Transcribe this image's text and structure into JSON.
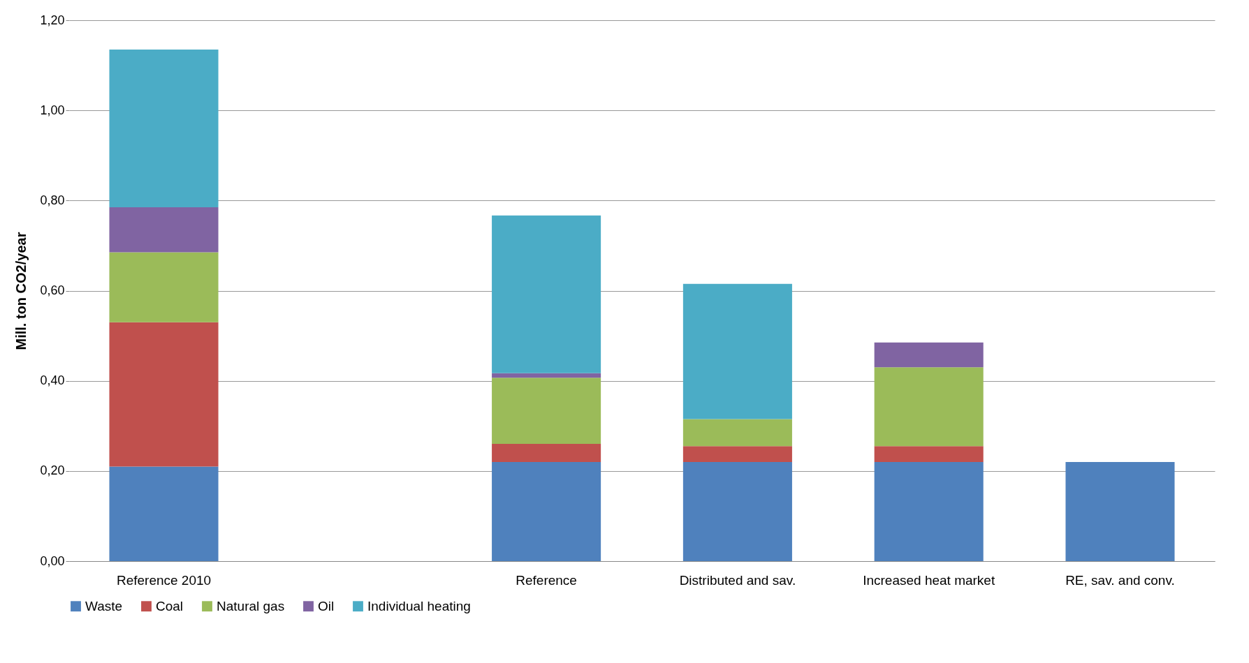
{
  "chart_data": {
    "type": "bar",
    "stacked": true,
    "ylabel": "Mill. ton CO2/year",
    "categories": [
      "Reference 2010",
      null,
      "Reference",
      "Distributed and sav.",
      "Increased heat market",
      "RE, sav. and conv."
    ],
    "series": [
      {
        "name": "Waste",
        "color": "#4f81bd",
        "values": [
          0.21,
          null,
          0.22,
          0.22,
          0.22,
          0.22
        ]
      },
      {
        "name": "Coal",
        "color": "#c0504d",
        "values": [
          0.32,
          null,
          0.04,
          0.035,
          0.035,
          null
        ]
      },
      {
        "name": "Natural gas",
        "color": "#9bbb59",
        "values": [
          0.155,
          null,
          0.147,
          0.06,
          0.175,
          null
        ]
      },
      {
        "name": "Oil",
        "color": "#8064a2",
        "values": [
          0.1,
          null,
          0.01,
          null,
          0.055,
          null
        ]
      },
      {
        "name": "Individual heating",
        "color": "#4bacc6",
        "values": [
          0.35,
          null,
          0.35,
          0.3,
          null,
          null
        ]
      }
    ],
    "ylim": [
      0,
      1.2
    ],
    "yticks": [
      {
        "value": 0,
        "label": "0,00"
      },
      {
        "value": 0.2,
        "label": "0,20"
      },
      {
        "value": 0.4,
        "label": "0,40"
      },
      {
        "value": 0.6,
        "label": "0,60"
      },
      {
        "value": 0.8,
        "label": "0,80"
      },
      {
        "value": 1.0,
        "label": "1,00"
      },
      {
        "value": 1.2,
        "label": "1,20"
      }
    ],
    "grid": "y",
    "legend": "bottom"
  }
}
